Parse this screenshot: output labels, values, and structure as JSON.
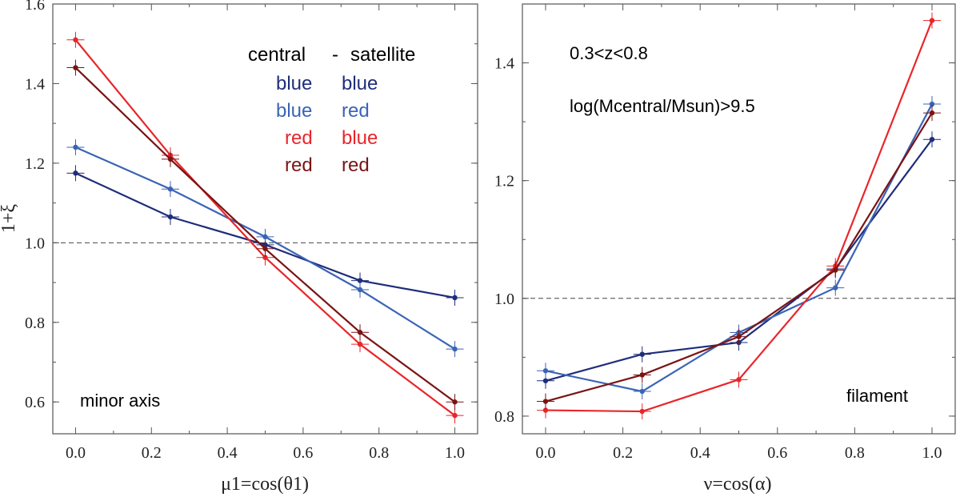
{
  "colors": {
    "blue_blue": "#1f2d7a",
    "blue_red": "#3a64b5",
    "red_blue": "#e8262a",
    "red_red": "#7a1414"
  },
  "chart_data": [
    {
      "type": "line",
      "panel": "left",
      "xlabel": "μ1=cos(θ1)",
      "ylabel": "1+ξ",
      "xlim": [
        -0.06,
        1.06
      ],
      "ylim": [
        0.52,
        1.6
      ],
      "xticks": [
        0.0,
        0.2,
        0.4,
        0.6,
        0.8,
        1.0
      ],
      "xtick_labels": [
        "0.0",
        "0.2",
        "0.4",
        "0.6",
        "0.8",
        "1.0"
      ],
      "yticks": [
        0.6,
        0.8,
        1.0,
        1.2,
        1.4,
        1.6
      ],
      "ytick_labels": [
        "0.6",
        "0.8",
        "1.0",
        "1.2",
        "1.4",
        "1.6"
      ],
      "reference_line": 1.0,
      "annotation": "minor axis",
      "legend": {
        "header_left": "central",
        "header_sep": "-",
        "header_right": "satellite",
        "rows": [
          {
            "central": "blue",
            "satellite": "blue",
            "color_key": "blue_blue"
          },
          {
            "central": "blue",
            "satellite": "red",
            "color_key": "blue_red"
          },
          {
            "central": "red",
            "satellite": "blue",
            "color_key": "red_blue"
          },
          {
            "central": "red",
            "satellite": "red",
            "color_key": "red_red"
          }
        ]
      },
      "x": [
        0.0,
        0.25,
        0.5,
        0.75,
        1.0
      ],
      "series": [
        {
          "name": "blue-blue",
          "color_key": "blue_blue",
          "values": [
            1.175,
            1.065,
            0.995,
            0.905,
            0.862
          ]
        },
        {
          "name": "blue-red",
          "color_key": "blue_red",
          "values": [
            1.24,
            1.135,
            1.015,
            0.882,
            0.733
          ]
        },
        {
          "name": "red-blue",
          "color_key": "red_blue",
          "values": [
            1.51,
            1.22,
            0.963,
            0.745,
            0.566
          ]
        },
        {
          "name": "red-red",
          "color_key": "red_red",
          "values": [
            1.44,
            1.21,
            0.985,
            0.775,
            0.6
          ]
        }
      ]
    },
    {
      "type": "line",
      "panel": "right",
      "xlabel": "ν=cos(α)",
      "ylabel": "",
      "xlim": [
        -0.06,
        1.06
      ],
      "ylim": [
        0.77,
        1.5
      ],
      "xticks": [
        0.0,
        0.2,
        0.4,
        0.6,
        0.8,
        1.0
      ],
      "xtick_labels": [
        "0.0",
        "0.2",
        "0.4",
        "0.6",
        "0.8",
        "1.0"
      ],
      "yticks": [
        0.8,
        1.0,
        1.2,
        1.4
      ],
      "ytick_labels": [
        "0.8",
        "1.0",
        "1.2",
        "1.4"
      ],
      "reference_line": 1.0,
      "annotation": "filament",
      "notes": [
        "0.3<z<0.8",
        "log(Mcentral/Msun)>9.5"
      ],
      "x": [
        0.0,
        0.25,
        0.5,
        0.75,
        1.0
      ],
      "series": [
        {
          "name": "blue-blue",
          "color_key": "blue_blue",
          "values": [
            0.86,
            0.905,
            0.925,
            1.05,
            1.27
          ]
        },
        {
          "name": "blue-red",
          "color_key": "blue_red",
          "values": [
            0.877,
            0.842,
            0.942,
            1.018,
            1.33
          ]
        },
        {
          "name": "red-blue",
          "color_key": "red_blue",
          "values": [
            0.81,
            0.808,
            0.862,
            1.055,
            1.472
          ]
        },
        {
          "name": "red-red",
          "color_key": "red_red",
          "values": [
            0.825,
            0.87,
            0.935,
            1.048,
            1.315
          ]
        }
      ]
    }
  ]
}
